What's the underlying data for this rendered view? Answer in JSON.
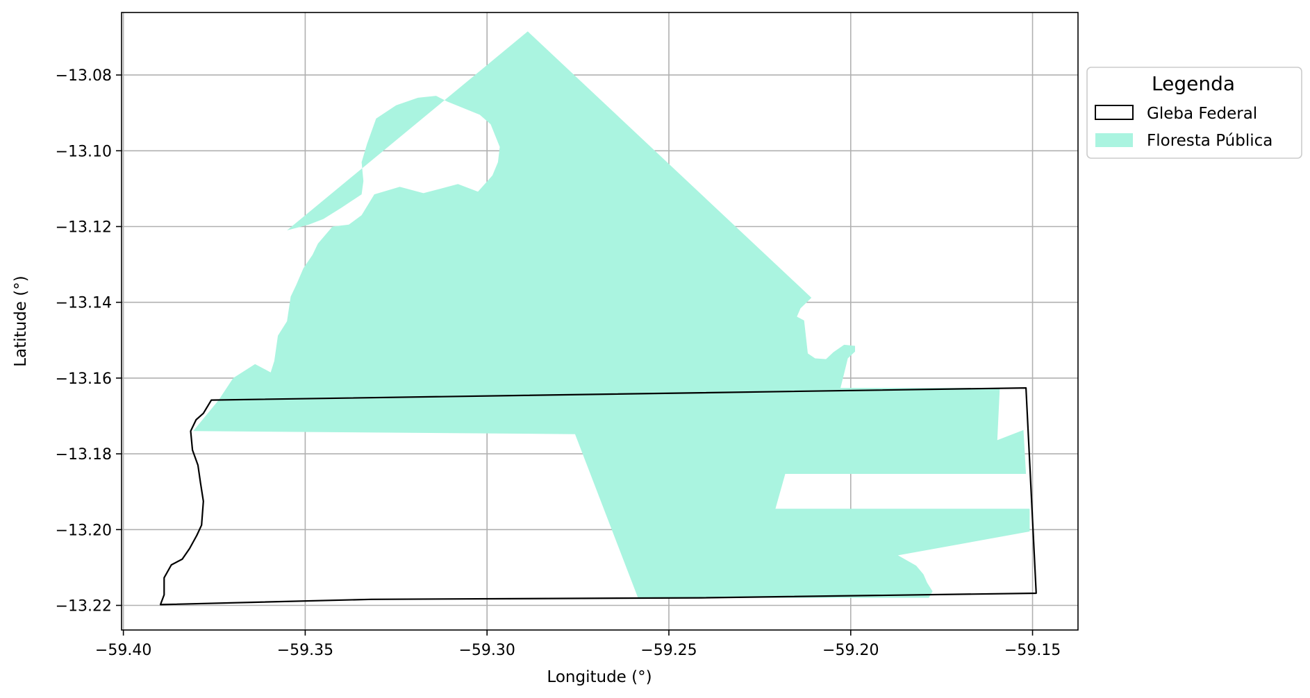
{
  "chart_data": {
    "type": "map",
    "xlabel": "Longitude (°)",
    "ylabel": "Latitude (°)",
    "xlim": [
      -59.4005,
      -59.1375
    ],
    "ylim": [
      -13.2265,
      -13.0635
    ],
    "grid": true,
    "x_ticks": [
      -59.4,
      -59.35,
      -59.3,
      -59.25,
      -59.2,
      -59.15
    ],
    "x_tick_labels": [
      "−59.40",
      "−59.35",
      "−59.30",
      "−59.25",
      "−59.20",
      "−59.15"
    ],
    "y_ticks": [
      -13.08,
      -13.1,
      -13.12,
      -13.14,
      -13.16,
      -13.18,
      -13.2,
      -13.22
    ],
    "y_tick_labels": [
      "−13.08",
      "−13.10",
      "−13.12",
      "−13.14",
      "−13.16",
      "−13.18",
      "−13.20",
      "−13.22"
    ],
    "legend": {
      "placement": "outside-upper-right",
      "title": "Legenda",
      "entries": [
        {
          "label": "Gleba Federal",
          "style": "outline",
          "color": "#000000"
        },
        {
          "label": "Floresta Pública",
          "style": "fill",
          "color": "#aaf4e0"
        }
      ]
    },
    "layers": [
      {
        "name": "Floresta Pública",
        "style": "fill",
        "color": "#aaf4e0",
        "polygons": [
          [
            [
              -59.2888,
              -13.0685
            ],
            [
              -59.2108,
              -13.1388
            ],
            [
              -59.2138,
              -13.1416
            ],
            [
              -59.2148,
              -13.1438
            ],
            [
              -59.2128,
              -13.1448
            ],
            [
              -59.2118,
              -13.1535
            ],
            [
              -59.2098,
              -13.1548
            ],
            [
              -59.2068,
              -13.155
            ],
            [
              -59.2048,
              -13.1532
            ],
            [
              -59.2018,
              -13.1512
            ],
            [
              -59.1988,
              -13.1515
            ],
            [
              -59.1988,
              -13.153
            ],
            [
              -59.2008,
              -13.1548
            ],
            [
              -59.2018,
              -13.1588
            ],
            [
              -59.2028,
              -13.1626
            ],
            [
              -59.159,
              -13.1626
            ],
            [
              -59.1597,
              -13.1764
            ],
            [
              -59.1525,
              -13.1737
            ],
            [
              -59.1518,
              -13.1853
            ],
            [
              -59.218,
              -13.1853
            ],
            [
              -59.2207,
              -13.1945
            ],
            [
              -59.1508,
              -13.1945
            ],
            [
              -59.1508,
              -13.2005
            ],
            [
              -59.187,
              -13.2068
            ],
            [
              -59.182,
              -13.2095
            ],
            [
              -59.18,
              -13.2118
            ],
            [
              -59.179,
              -13.214
            ],
            [
              -59.1775,
              -13.2163
            ],
            [
              -59.1785,
              -13.218
            ],
            [
              -59.2585,
              -13.218
            ],
            [
              -59.2758,
              -13.1748
            ],
            [
              -59.3808,
              -13.174
            ],
            [
              -59.3738,
              -13.1658
            ],
            [
              -59.3698,
              -13.16
            ],
            [
              -59.3638,
              -13.1563
            ],
            [
              -59.3595,
              -13.1585
            ],
            [
              -59.3585,
              -13.1555
            ],
            [
              -59.3575,
              -13.1488
            ],
            [
              -59.355,
              -13.145
            ],
            [
              -59.354,
              -13.1385
            ],
            [
              -59.3525,
              -13.1355
            ],
            [
              -59.3505,
              -13.131
            ],
            [
              -59.348,
              -13.1275
            ],
            [
              -59.3465,
              -13.1245
            ],
            [
              -59.3425,
              -13.12
            ],
            [
              -59.338,
              -13.1195
            ],
            [
              -59.3345,
              -13.117
            ],
            [
              -59.331,
              -13.1115
            ],
            [
              -59.324,
              -13.1095
            ],
            [
              -59.3175,
              -13.1112
            ],
            [
              -59.308,
              -13.1088
            ],
            [
              -59.3025,
              -13.1108
            ],
            [
              -59.2985,
              -13.1065
            ],
            [
              -59.297,
              -13.103
            ],
            [
              -59.2965,
              -13.099
            ],
            [
              -59.299,
              -13.093
            ],
            [
              -59.302,
              -13.0905
            ],
            [
              -59.311,
              -13.087
            ],
            [
              -59.314,
              -13.0855
            ],
            [
              -59.319,
              -13.086
            ],
            [
              -59.325,
              -13.088
            ],
            [
              -59.3305,
              -13.0915
            ],
            [
              -59.333,
              -13.0982
            ],
            [
              -59.3345,
              -13.103
            ],
            [
              -59.334,
              -13.108
            ],
            [
              -59.3345,
              -13.1115
            ],
            [
              -59.34,
              -13.115
            ],
            [
              -59.345,
              -13.118
            ],
            [
              -59.349,
              -13.1195
            ],
            [
              -59.355,
              -13.121
            ],
            [
              -59.2888,
              -13.0685
            ]
          ]
        ]
      },
      {
        "name": "Gleba Federal",
        "style": "outline",
        "color": "#000000",
        "polygons": [
          [
            [
              -59.3758,
              -13.1658
            ],
            [
              -59.1518,
              -13.1626
            ],
            [
              -59.149,
              -13.2168
            ],
            [
              -59.241,
              -13.218
            ],
            [
              -59.3318,
              -13.2184
            ],
            [
              -59.3898,
              -13.2198
            ],
            [
              -59.3888,
              -13.2172
            ],
            [
              -59.3888,
              -13.2127
            ],
            [
              -59.3868,
              -13.2093
            ],
            [
              -59.3838,
              -13.2078
            ],
            [
              -59.3818,
              -13.205
            ],
            [
              -59.3798,
              -13.2015
            ],
            [
              -59.3785,
              -13.1988
            ],
            [
              -59.378,
              -13.1925
            ],
            [
              -59.3788,
              -13.1876
            ],
            [
              -59.3795,
              -13.183
            ],
            [
              -59.381,
              -13.179
            ],
            [
              -59.3815,
              -13.174
            ],
            [
              -59.38,
              -13.171
            ],
            [
              -59.378,
              -13.1693
            ],
            [
              -59.3758,
              -13.1658
            ]
          ]
        ]
      }
    ]
  }
}
